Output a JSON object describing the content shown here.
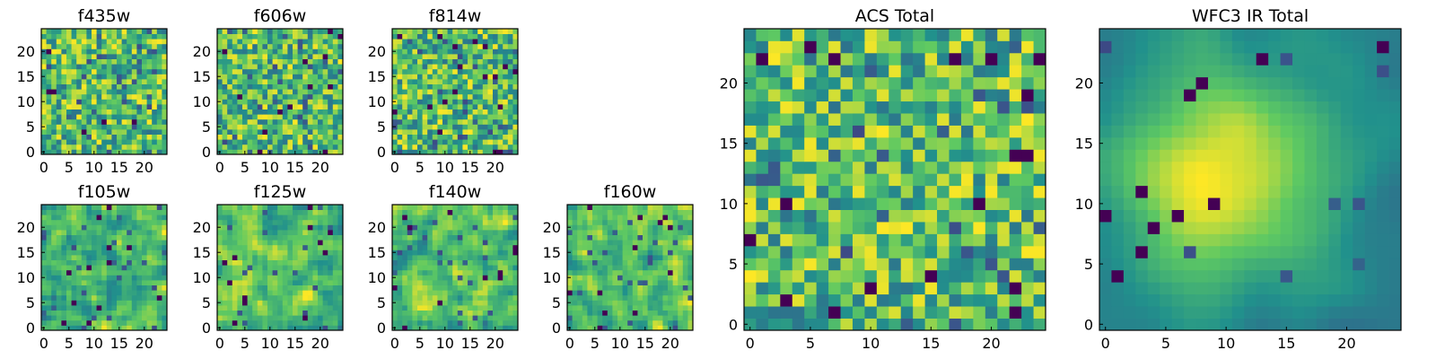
{
  "figure": {
    "colormap": "viridis",
    "colormap_stops": [
      "#440154",
      "#3b528b",
      "#21918c",
      "#5ec962",
      "#fde725"
    ]
  },
  "chart_data": [
    {
      "type": "heatmap",
      "title": "f435w",
      "grid_size": 25,
      "xticks": [
        0,
        5,
        10,
        15,
        20
      ],
      "yticks": [
        0,
        5,
        10,
        15,
        20
      ],
      "xlim": [
        -0.5,
        24.5
      ],
      "ylim": [
        -0.5,
        24.5
      ],
      "pattern": "noise",
      "seed": 11
    },
    {
      "type": "heatmap",
      "title": "f606w",
      "grid_size": 25,
      "xticks": [
        0,
        5,
        10,
        15,
        20
      ],
      "yticks": [
        0,
        5,
        10,
        15,
        20
      ],
      "xlim": [
        -0.5,
        24.5
      ],
      "ylim": [
        -0.5,
        24.5
      ],
      "pattern": "noise",
      "seed": 23
    },
    {
      "type": "heatmap",
      "title": "f814w",
      "grid_size": 25,
      "xticks": [
        0,
        5,
        10,
        15,
        20
      ],
      "yticks": [
        0,
        5,
        10,
        15,
        20
      ],
      "xlim": [
        -0.5,
        24.5
      ],
      "ylim": [
        -0.5,
        24.5
      ],
      "pattern": "noise",
      "seed": 37
    },
    {
      "type": "heatmap",
      "title": "f105w",
      "grid_size": 25,
      "xticks": [
        0,
        5,
        10,
        15,
        20
      ],
      "yticks": [
        0,
        5,
        10,
        15,
        20
      ],
      "xlim": [
        -0.5,
        24.5
      ],
      "ylim": [
        -0.5,
        24.5
      ],
      "pattern": "smooth",
      "seed": 41
    },
    {
      "type": "heatmap",
      "title": "f125w",
      "grid_size": 25,
      "xticks": [
        0,
        5,
        10,
        15,
        20
      ],
      "yticks": [
        0,
        5,
        10,
        15,
        20
      ],
      "xlim": [
        -0.5,
        24.5
      ],
      "ylim": [
        -0.5,
        24.5
      ],
      "pattern": "smooth",
      "seed": 53
    },
    {
      "type": "heatmap",
      "title": "f140w",
      "grid_size": 25,
      "xticks": [
        0,
        5,
        10,
        15,
        20
      ],
      "yticks": [
        0,
        5,
        10,
        15,
        20
      ],
      "xlim": [
        -0.5,
        24.5
      ],
      "ylim": [
        -0.5,
        24.5
      ],
      "pattern": "smooth",
      "seed": 67
    },
    {
      "type": "heatmap",
      "title": "f160w",
      "grid_size": 25,
      "xticks": [
        0,
        5,
        10,
        15,
        20
      ],
      "yticks": [
        0,
        5,
        10,
        15,
        20
      ],
      "xlim": [
        -0.5,
        24.5
      ],
      "ylim": [
        -0.5,
        24.5
      ],
      "pattern": "smooth",
      "seed": 79
    },
    {
      "type": "heatmap",
      "title": "ACS Total",
      "grid_size": 25,
      "xticks": [
        0,
        5,
        10,
        15,
        20
      ],
      "yticks": [
        0,
        5,
        10,
        15,
        20
      ],
      "xlim": [
        -0.5,
        24.5
      ],
      "ylim": [
        -0.5,
        24.5
      ],
      "pattern": "noise",
      "seed": 97
    },
    {
      "type": "heatmap",
      "title": "WFC3 IR Total",
      "grid_size": 25,
      "xticks": [
        0,
        5,
        10,
        15,
        20
      ],
      "yticks": [
        0,
        5,
        10,
        15,
        20
      ],
      "xlim": [
        -0.5,
        24.5
      ],
      "ylim": [
        -0.5,
        24.5
      ],
      "pattern": "blob",
      "seed": 101
    }
  ]
}
